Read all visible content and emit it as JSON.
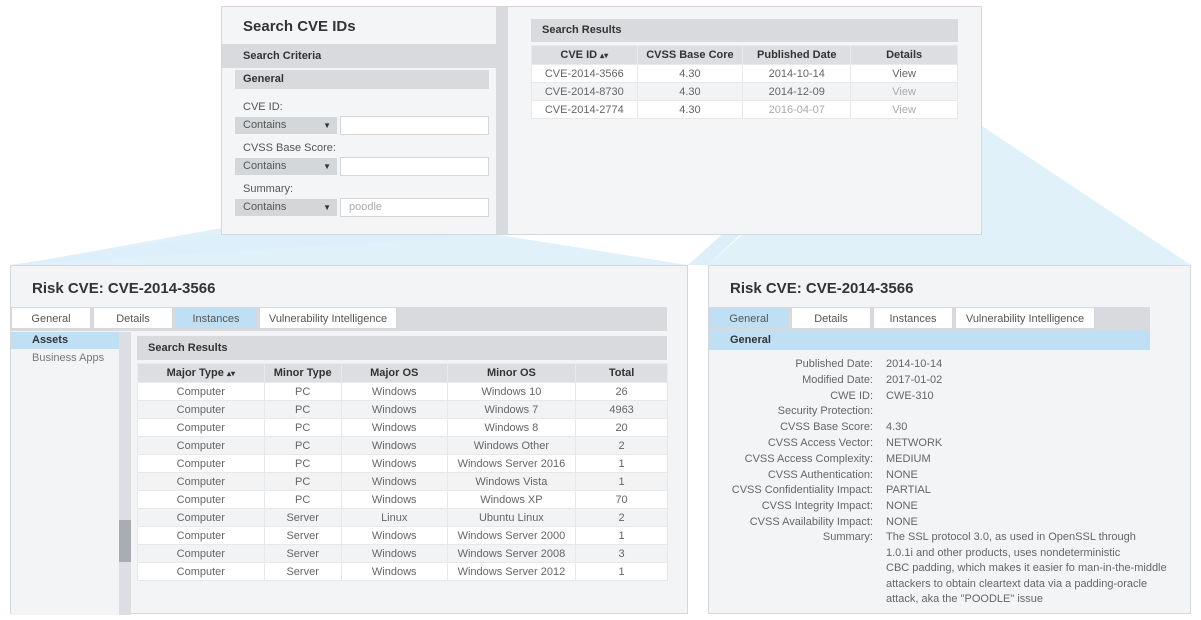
{
  "search_panel": {
    "title": "Search CVE IDs",
    "criteria_header": "Search Criteria",
    "general_header": "General",
    "cve_id_label": "CVE ID:",
    "cve_id_operator": "Contains",
    "cve_id_value": "",
    "cvss_label": "CVSS Base Score:",
    "cvss_operator": "Contains",
    "cvss_value": "",
    "summary_label": "Summary:",
    "summary_operator": "Contains",
    "summary_value": "poodle"
  },
  "results_panel": {
    "header": "Search Results",
    "columns": [
      "CVE ID",
      "CVSS Base Core",
      "Published Date",
      "Details"
    ],
    "sort_icon": "sort-icon",
    "rows": [
      {
        "cve": "CVE-2014-3566",
        "score": "4.30",
        "date": "2014-10-14",
        "details": "View"
      },
      {
        "cve": "CVE-2014-8730",
        "score": "4.30",
        "date": "2014-12-09",
        "details": "View"
      },
      {
        "cve": "CVE-2014-2774",
        "score": "4.30",
        "date": "2016-04-07",
        "details": "View"
      }
    ]
  },
  "risk_left": {
    "title": "Risk CVE: CVE-2014-3566",
    "tabs": [
      "General",
      "Details",
      "Instances",
      "Vulnerability Intelligence"
    ],
    "active_tab": "Instances",
    "side_items": [
      "Assets",
      "Business Apps"
    ],
    "results_header": "Search Results",
    "columns": [
      "Major Type",
      "Minor Type",
      "Major OS",
      "Minor OS",
      "Total"
    ],
    "rows": [
      [
        "Computer",
        "PC",
        "Windows",
        "Windows 10",
        "26"
      ],
      [
        "Computer",
        "PC",
        "Windows",
        "Windows 7",
        "4963"
      ],
      [
        "Computer",
        "PC",
        "Windows",
        "Windows 8",
        "20"
      ],
      [
        "Computer",
        "PC",
        "Windows",
        "Windows Other",
        "2"
      ],
      [
        "Computer",
        "PC",
        "Windows",
        "Windows Server 2016",
        "1"
      ],
      [
        "Computer",
        "PC",
        "Windows",
        "Windows Vista",
        "1"
      ],
      [
        "Computer",
        "PC",
        "Windows",
        "Windows XP",
        "70"
      ],
      [
        "Computer",
        "Server",
        "Linux",
        "Ubuntu Linux",
        "2"
      ],
      [
        "Computer",
        "Server",
        "Windows",
        "Windows Server 2000",
        "1"
      ],
      [
        "Computer",
        "Server",
        "Windows",
        "Windows Server 2008",
        "3"
      ],
      [
        "Computer",
        "Server",
        "Windows",
        "Windows Server 2012",
        "1"
      ]
    ]
  },
  "risk_right": {
    "title": "Risk CVE: CVE-2014-3566",
    "tabs": [
      "General",
      "Details",
      "Instances",
      "Vulnerability Intelligence"
    ],
    "active_tab": "General",
    "section_header": "General",
    "fields": [
      {
        "k": "Published Date:",
        "v": "2014-10-14"
      },
      {
        "k": "Modified Date:",
        "v": "2017-01-02"
      },
      {
        "k": "CWE ID:",
        "v": "CWE-310"
      },
      {
        "k": "Security Protection:",
        "v": ""
      },
      {
        "k": "CVSS Base Score:",
        "v": "4.30"
      },
      {
        "k": "CVSS Access Vector:",
        "v": "NETWORK"
      },
      {
        "k": "CVSS Access Complexity:",
        "v": "MEDIUM"
      },
      {
        "k": "CVSS Authentication:",
        "v": "NONE"
      },
      {
        "k": "CVSS Confidentiality Impact:",
        "v": "PARTIAL"
      },
      {
        "k": "CVSS Integrity Impact:",
        "v": "NONE"
      },
      {
        "k": "CVSS Availability Impact:",
        "v": "NONE"
      }
    ],
    "summary_label": "Summary:",
    "summary_lines": [
      "The SSL protocol 3.0, as used in OpenSSL through",
      "1.0.1i and other products, uses nondeterministic",
      "CBC padding, which makes it easier fo man-in-the-middle",
      "attackers to obtain cleartext data via a padding-oracle",
      "attack, aka the \"POODLE\" issue"
    ]
  },
  "colors": {
    "accent": "#bfe0f4",
    "panel_bg": "#f2f4f6",
    "header_bg": "#d8dadd"
  }
}
